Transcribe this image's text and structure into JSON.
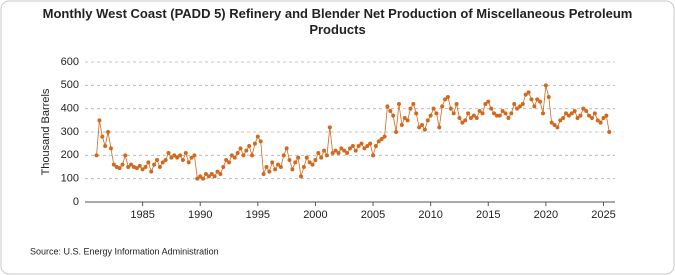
{
  "chart_data": {
    "type": "line",
    "title": "Monthly West Coast (PADD 5) Refinery and Blender Net Production of Miscellaneous Petroleum Products",
    "ylabel": "Thousand Barrels",
    "source": "Source: U.S. Energy Information Administration",
    "xlim": [
      1980,
      2026
    ],
    "xticks": [
      1985,
      1990,
      1995,
      2000,
      2005,
      2010,
      2015,
      2020,
      2025
    ],
    "ylim": [
      0,
      600
    ],
    "yticks": [
      0,
      100,
      200,
      300,
      400,
      500,
      600
    ],
    "grid": true,
    "series": [
      {
        "name": "West Coast (PADD 5)",
        "color": "#d2691e",
        "x": [
          1981,
          1981.25,
          1981.5,
          1981.75,
          1982,
          1982.25,
          1982.5,
          1982.75,
          1983,
          1983.25,
          1983.5,
          1983.75,
          1984,
          1984.25,
          1984.5,
          1984.75,
          1985,
          1985.25,
          1985.5,
          1985.75,
          1986,
          1986.25,
          1986.5,
          1986.75,
          1987,
          1987.25,
          1987.5,
          1987.75,
          1988,
          1988.25,
          1988.5,
          1988.75,
          1989,
          1989.25,
          1989.5,
          1989.75,
          1990,
          1990.25,
          1990.5,
          1990.75,
          1991,
          1991.25,
          1991.5,
          1991.75,
          1992,
          1992.25,
          1992.5,
          1992.75,
          1993,
          1993.25,
          1993.5,
          1993.75,
          1994,
          1994.25,
          1994.5,
          1994.75,
          1995,
          1995.25,
          1995.5,
          1995.75,
          1996,
          1996.25,
          1996.5,
          1996.75,
          1997,
          1997.25,
          1997.5,
          1997.75,
          1998,
          1998.25,
          1998.5,
          1998.75,
          1999,
          1999.25,
          1999.5,
          1999.75,
          2000,
          2000.25,
          2000.5,
          2000.75,
          2001,
          2001.25,
          2001.5,
          2001.75,
          2002,
          2002.25,
          2002.5,
          2002.75,
          2003,
          2003.25,
          2003.5,
          2003.75,
          2004,
          2004.25,
          2004.5,
          2004.75,
          2005,
          2005.25,
          2005.5,
          2005.75,
          2006,
          2006.25,
          2006.5,
          2006.75,
          2007,
          2007.25,
          2007.5,
          2007.75,
          2008,
          2008.25,
          2008.5,
          2008.75,
          2009,
          2009.25,
          2009.5,
          2009.75,
          2010,
          2010.25,
          2010.5,
          2010.75,
          2011,
          2011.25,
          2011.5,
          2011.75,
          2012,
          2012.25,
          2012.5,
          2012.75,
          2013,
          2013.25,
          2013.5,
          2013.75,
          2014,
          2014.25,
          2014.5,
          2014.75,
          2015,
          2015.25,
          2015.5,
          2015.75,
          2016,
          2016.25,
          2016.5,
          2016.75,
          2017,
          2017.25,
          2017.5,
          2017.75,
          2018,
          2018.25,
          2018.5,
          2018.75,
          2019,
          2019.25,
          2019.5,
          2019.75,
          2020,
          2020.25,
          2020.5,
          2020.75,
          2021,
          2021.25,
          2021.5,
          2021.75,
          2022,
          2022.25,
          2022.5,
          2022.75,
          2023,
          2023.25,
          2023.5,
          2023.75,
          2024,
          2024.25,
          2024.5,
          2024.75,
          2025,
          2025.25,
          2025.5
        ],
        "values": [
          200,
          350,
          280,
          240,
          300,
          230,
          160,
          150,
          145,
          160,
          200,
          150,
          160,
          150,
          145,
          155,
          140,
          150,
          170,
          130,
          160,
          180,
          150,
          170,
          180,
          210,
          190,
          200,
          190,
          200,
          180,
          210,
          170,
          190,
          200,
          100,
          110,
          100,
          120,
          110,
          120,
          110,
          130,
          120,
          150,
          180,
          170,
          200,
          190,
          210,
          230,
          200,
          220,
          240,
          200,
          250,
          280,
          260,
          120,
          150,
          130,
          170,
          140,
          160,
          150,
          200,
          230,
          180,
          140,
          170,
          190,
          110,
          150,
          190,
          170,
          160,
          180,
          210,
          190,
          220,
          200,
          320,
          210,
          220,
          210,
          230,
          220,
          210,
          230,
          240,
          220,
          240,
          250,
          230,
          240,
          250,
          200,
          240,
          260,
          270,
          280,
          410,
          390,
          370,
          300,
          420,
          330,
          360,
          350,
          400,
          420,
          380,
          320,
          330,
          310,
          350,
          370,
          400,
          380,
          320,
          410,
          440,
          450,
          400,
          380,
          420,
          360,
          340,
          350,
          380,
          360,
          370,
          360,
          390,
          380,
          420,
          430,
          400,
          380,
          370,
          370,
          390,
          380,
          360,
          380,
          420,
          400,
          410,
          420,
          460,
          470,
          440,
          410,
          440,
          430,
          380,
          500,
          450,
          340,
          330,
          320,
          350,
          360,
          380,
          370,
          380,
          390,
          360,
          370,
          400,
          390,
          370,
          360,
          380,
          350,
          340,
          360,
          370,
          300
        ]
      }
    ]
  }
}
